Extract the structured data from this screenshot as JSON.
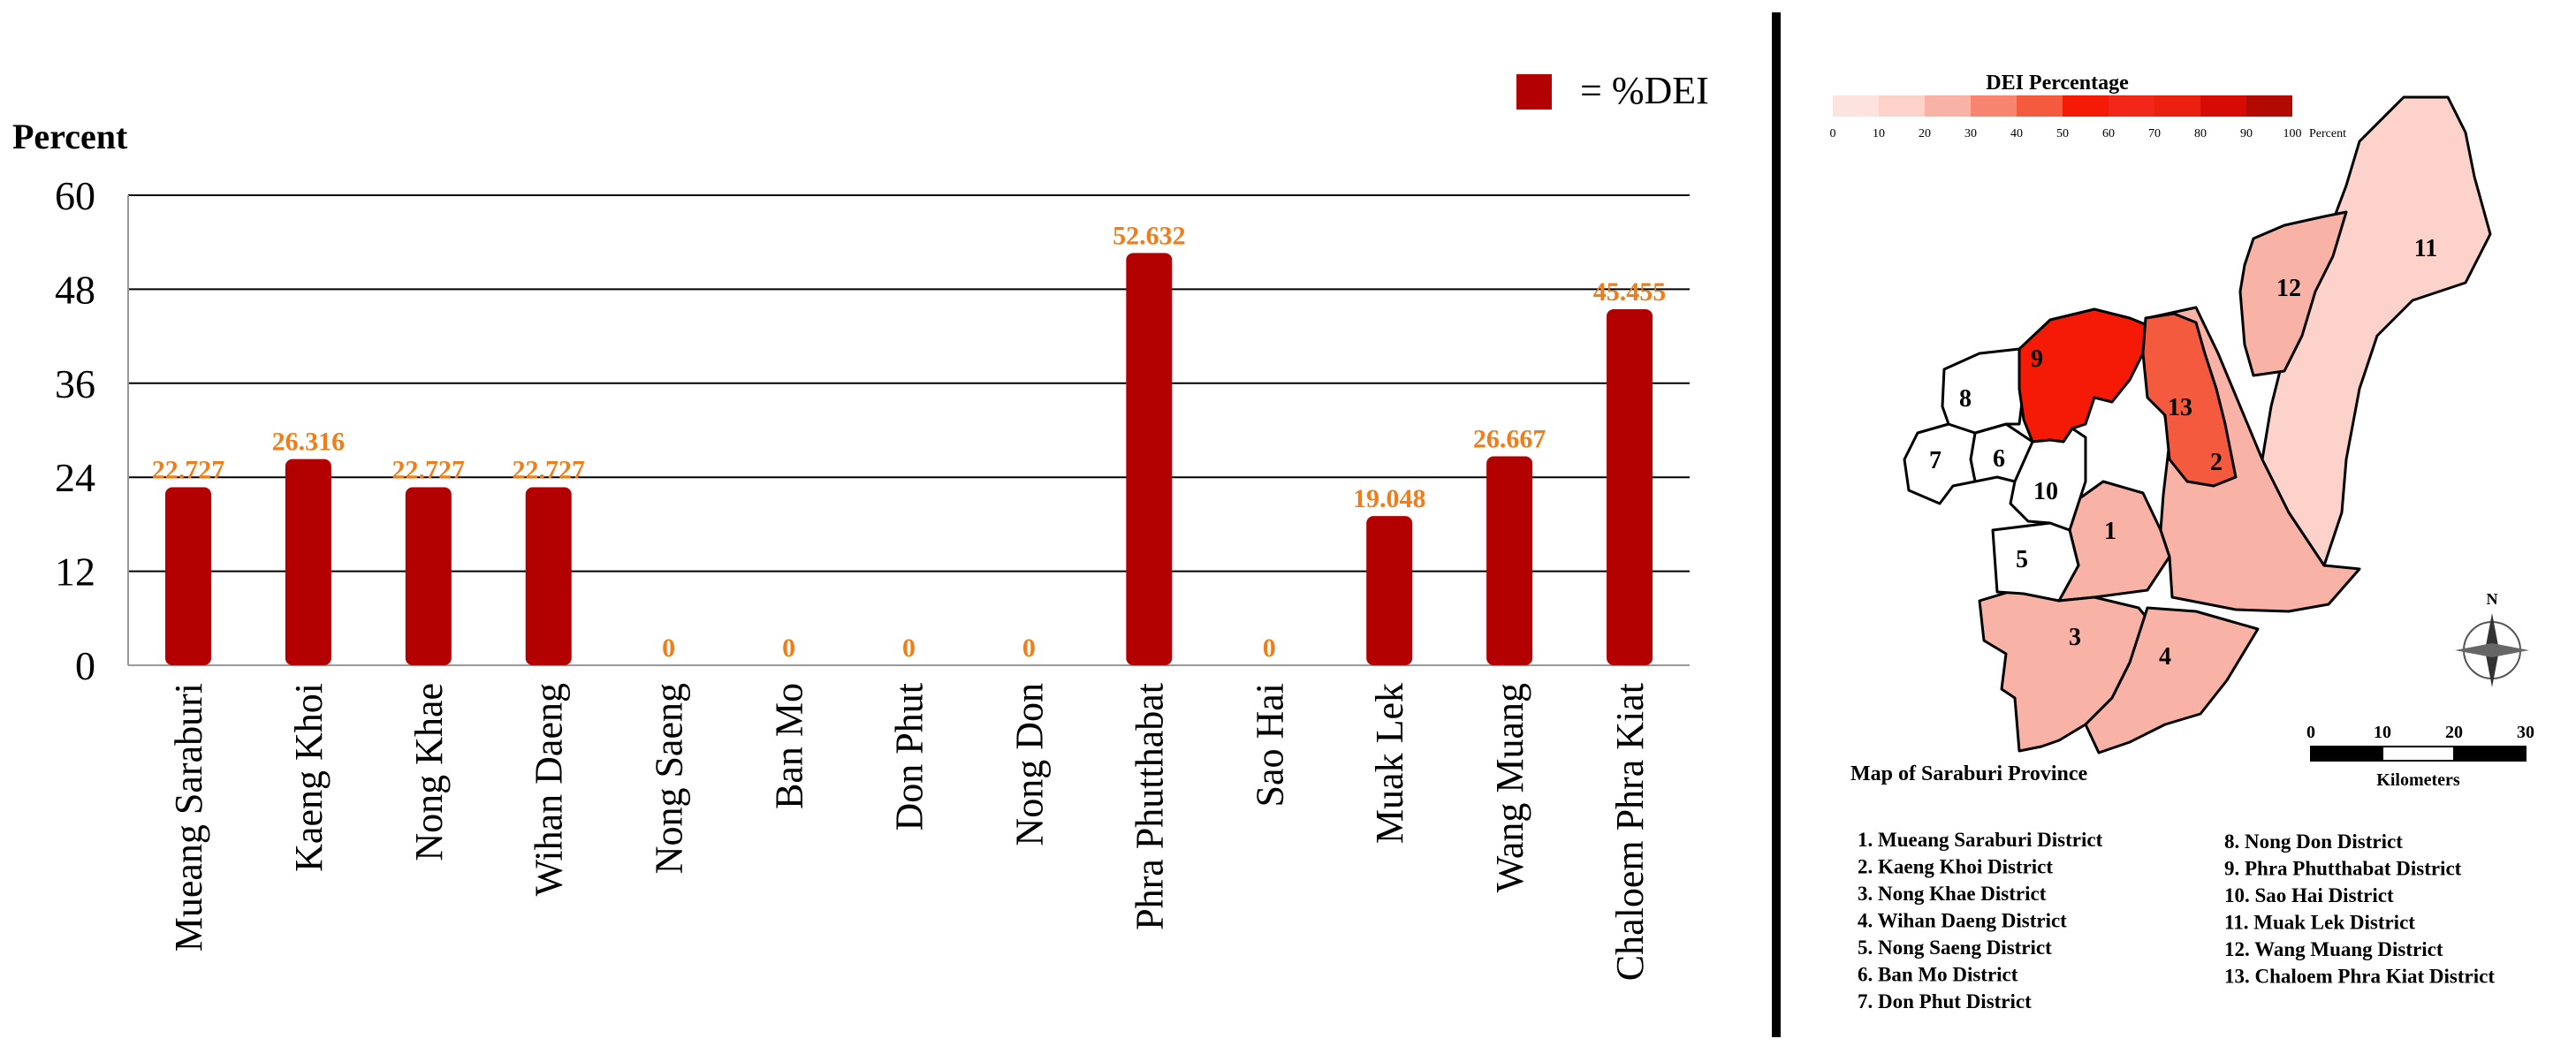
{
  "chart_data": {
    "type": "bar",
    "ylabel": "Percent",
    "legend": {
      "label": "= %DEI",
      "color": "#b30000",
      "position": "top-right"
    },
    "categories": [
      "Mueang Saraburi",
      "Kaeng Khoi",
      "Nong Khae",
      "Wihan Daeng",
      "Nong Saeng",
      "Ban Mo",
      "Don Phut",
      "Nong Don",
      "Phra Phutthabat",
      "Sao Hai",
      "Muak Lek",
      "Wang Muang",
      "Chaloem Phra Kiat"
    ],
    "values": [
      22.727,
      26.316,
      22.727,
      22.727,
      0,
      0,
      0,
      0,
      52.632,
      0,
      19.048,
      26.667,
      45.455
    ],
    "data_labels": [
      "22.727",
      "26.316",
      "22.727",
      "22.727",
      "0",
      "0",
      "0",
      "0",
      "52.632",
      "0",
      "19.048",
      "26.667",
      "45.455"
    ],
    "yticks": [
      "0",
      "12",
      "24",
      "36",
      "48",
      "60"
    ],
    "ylim": [
      0,
      60
    ],
    "grid": true,
    "bar_color": "#b30000",
    "label_color": "#f07d1a"
  },
  "map": {
    "title": "Map of Saraburi Province",
    "scale_title": "DEI Percentage",
    "scale_ticks": [
      "0",
      "10",
      "20",
      "30",
      "40",
      "50",
      "60",
      "70",
      "80",
      "90",
      "100"
    ],
    "scale_unit": "Percent",
    "scale_colors": [
      "#fde3df",
      "#fcd2cb",
      "#f9b2a6",
      "#f7846f",
      "#f45b3e",
      "#f41a05",
      "#f2271a",
      "#ec200e",
      "#d60b06",
      "#b30a00"
    ],
    "north": "N",
    "scalebar_ticks": [
      "0",
      "10",
      "20",
      "30"
    ],
    "scalebar_unit": "Kilometers",
    "regions": [
      {
        "num": "1",
        "color": "#f9b2a6"
      },
      {
        "num": "2",
        "color": "#f9b2a6"
      },
      {
        "num": "3",
        "color": "#f9b2a6"
      },
      {
        "num": "4",
        "color": "#f9b2a6"
      },
      {
        "num": "5",
        "color": "#ffffff"
      },
      {
        "num": "6",
        "color": "#ffffff"
      },
      {
        "num": "7",
        "color": "#ffffff"
      },
      {
        "num": "8",
        "color": "#ffffff"
      },
      {
        "num": "9",
        "color": "#f41a05"
      },
      {
        "num": "10",
        "color": "#ffffff"
      },
      {
        "num": "11",
        "color": "#fcd2cb"
      },
      {
        "num": "12",
        "color": "#f9b2a6"
      },
      {
        "num": "13",
        "color": "#f45b3e"
      }
    ],
    "legend_left": [
      "1.  Mueang Saraburi District",
      "2.  Kaeng Khoi District",
      "3.  Nong Khae District",
      "4.  Wihan Daeng District",
      "5.  Nong Saeng District",
      "6.  Ban Mo District",
      "7.  Don Phut District"
    ],
    "legend_right": [
      "8.  Nong Don District",
      "9.  Phra Phutthabat District",
      "10. Sao Hai District",
      "11. Muak Lek District",
      "12. Wang Muang District",
      "13. Chaloem Phra Kiat District"
    ]
  }
}
